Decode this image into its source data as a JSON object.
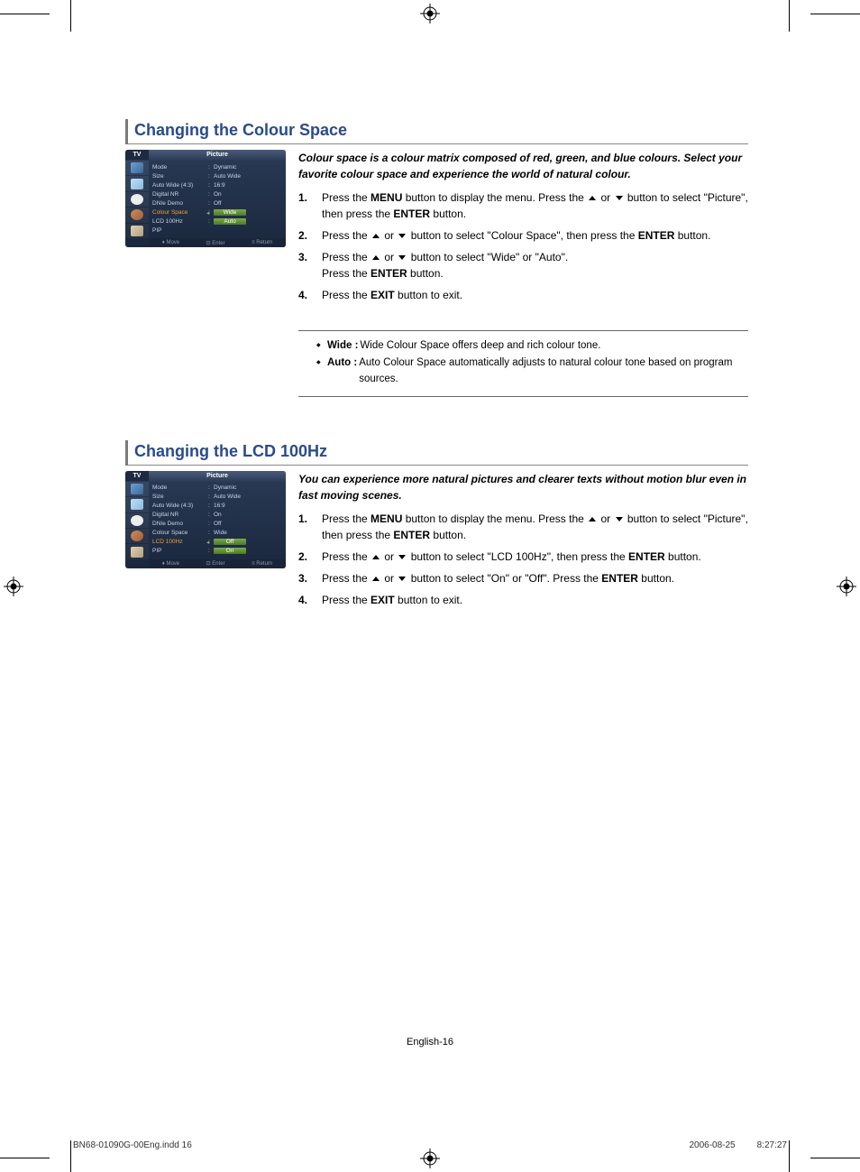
{
  "colors": {
    "accent": "#2a4a8c",
    "menu_bg_top": "#2a3a55",
    "menu_bg_bottom": "#1a283e",
    "highlight_green_top": "#7fa84a",
    "highlight_green_bottom": "#4a7a2a",
    "highlight_orange": "#f0a030"
  },
  "registration_label": "⊕",
  "section1": {
    "title": "Changing the Colour Space",
    "menu": {
      "tv_label": "TV",
      "header": "Picture",
      "rows": [
        {
          "key": "Mode",
          "value": "Dynamic",
          "highlight": ""
        },
        {
          "key": "Size",
          "value": "Auto Wide",
          "highlight": ""
        },
        {
          "key": "Auto Wide (4:3)",
          "value": "16:9",
          "highlight": ""
        },
        {
          "key": "Digital NR",
          "value": "On",
          "highlight": ""
        },
        {
          "key": "DNIe Demo",
          "value": "Off",
          "highlight": ""
        },
        {
          "key": "Colour Space",
          "value": "Wide",
          "highlight": "hl"
        },
        {
          "key": "LCD 100Hz",
          "value": "Auto",
          "highlight": "hl2"
        },
        {
          "key": "PIP",
          "value": "",
          "highlight": ""
        }
      ],
      "footer": {
        "move": "Move",
        "enter": "Enter",
        "ret": "Return"
      }
    },
    "intro": "Colour space is a colour matrix composed of red, green, and blue colours. Select your favorite colour space and experience the world of natural colour.",
    "steps": [
      {
        "n": "1.",
        "pre": "Press the ",
        "b1": "MENU",
        "mid": " button to display the menu. Press the ",
        "arrows": true,
        "post": " button to select \"Picture\", then press the ",
        "b2": "ENTER",
        "end": " button."
      },
      {
        "n": "2.",
        "pre": "Press the ",
        "arrows": true,
        "mid2": " button to select \"Colour Space\", then press the ",
        "b2": "ENTER",
        "end": " button."
      },
      {
        "n": "3.",
        "pre": "Press the ",
        "arrows": true,
        "mid2": " button to select \"Wide\" or \"Auto\".",
        "line2a": "Press the ",
        "line2b": "ENTER",
        "line2c": " button."
      },
      {
        "n": "4.",
        "pre": "Press the ",
        "b1": "EXIT",
        "end": " button to exit."
      }
    ],
    "notes": [
      {
        "label": "Wide :",
        "text": " Wide Colour Space offers deep and rich colour tone."
      },
      {
        "label": "Auto :",
        "text": " Auto Colour Space  automatically adjusts to natural colour tone based on program sources."
      }
    ]
  },
  "section2": {
    "title": "Changing the LCD 100Hz",
    "menu": {
      "tv_label": "TV",
      "header": "Picture",
      "rows": [
        {
          "key": "Mode",
          "value": "Dynamic",
          "highlight": ""
        },
        {
          "key": "Size",
          "value": "Auto Wide",
          "highlight": ""
        },
        {
          "key": "Auto Wide (4:3)",
          "value": "16:9",
          "highlight": ""
        },
        {
          "key": "Digital NR",
          "value": "On",
          "highlight": ""
        },
        {
          "key": "DNIe Demo",
          "value": "Off",
          "highlight": ""
        },
        {
          "key": "Colour Space",
          "value": "Wide",
          "highlight": ""
        },
        {
          "key": "LCD 100Hz",
          "value": "Off",
          "highlight": "hl"
        },
        {
          "key": "PIP",
          "value": "On",
          "highlight": "hl2"
        }
      ],
      "footer": {
        "move": "Move",
        "enter": "Enter",
        "ret": "Return"
      }
    },
    "intro": "You can experience more natural pictures and clearer texts without motion blur even in fast moving scenes.",
    "steps": [
      {
        "n": "1.",
        "pre": "Press the ",
        "b1": "MENU",
        "mid": " button to display the menu. Press the ",
        "arrows": true,
        "post": " button to select \"Picture\", then press the ",
        "b2": "ENTER",
        "end": " button."
      },
      {
        "n": "2.",
        "pre": "Press the ",
        "arrows": true,
        "mid2": " button to select \"LCD 100Hz\", then press the ",
        "b2": "ENTER",
        "end": " button."
      },
      {
        "n": "3.",
        "pre": "Press the ",
        "arrows": true,
        "mid2": " button to select \"On\" or \"Off\". Press the ",
        "b2": "ENTER",
        "end": " button."
      },
      {
        "n": "4.",
        "pre": "Press the ",
        "b1": "EXIT",
        "end": " button to exit."
      }
    ]
  },
  "page_label": "English-16",
  "footer": {
    "file": "BN68-01090G-00Eng.indd   16",
    "date": "2006-08-25",
    "time": "8:27:27"
  }
}
